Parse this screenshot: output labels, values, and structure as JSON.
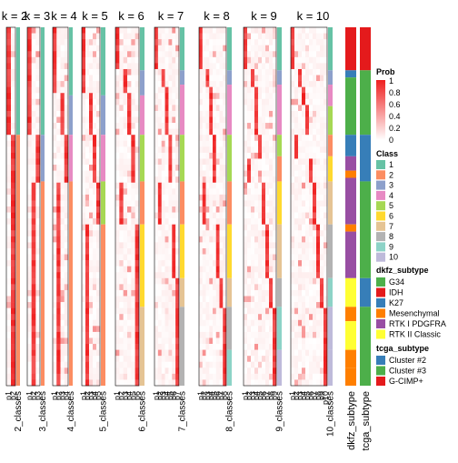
{
  "chart_data": {
    "type": "heatmap",
    "panel_titles": [
      "k = 2",
      "k = 3",
      "k = 4",
      "k = 5",
      "k = 6",
      "k = 7",
      "k = 8",
      "k = 9",
      "k = 10"
    ],
    "row_labels": {
      "k2": [
        "p1",
        "p2"
      ],
      "k3": [
        "p1",
        "p2",
        "p3"
      ],
      "k4": [
        "p1",
        "p2",
        "p3",
        "p4"
      ],
      "k5": [
        "p1",
        "p2",
        "p3",
        "p4",
        "p5"
      ],
      "k6": [
        "p1",
        "p2",
        "p3",
        "p4",
        "p5",
        "p6"
      ],
      "k7": [
        "p1",
        "p2",
        "p3",
        "p4",
        "p5",
        "p6",
        "p7"
      ],
      "k8": [
        "p1",
        "p2",
        "p3",
        "p4",
        "p5",
        "p6",
        "p7",
        "p8"
      ],
      "k9": [
        "p1",
        "p2",
        "p3",
        "p4",
        "p5",
        "p6",
        "p7",
        "p8",
        "p9"
      ],
      "k10": [
        "p1",
        "p2",
        "p3",
        "p4",
        "p5",
        "p6",
        "p7",
        "p8",
        "p9",
        "p10"
      ]
    },
    "class_bar_labels": [
      "2_classes",
      "3_classes",
      "4_classes",
      "5_classes",
      "6_classes",
      "7_classes",
      "8_classes",
      "9_classes",
      "10_classes"
    ],
    "annotation_columns": [
      "dkfz_subtype",
      "tcga_subtype"
    ],
    "legends": {
      "prob": {
        "title": "Prob",
        "ticks": [
          "1",
          "0.8",
          "0.6",
          "0.4",
          "0.2",
          "0"
        ],
        "range": [
          0,
          1
        ],
        "colors": [
          "#FFFFFF",
          "#EF1F1F"
        ]
      },
      "class": {
        "title": "Class",
        "labels": [
          "1",
          "2",
          "3",
          "4",
          "5",
          "6",
          "7",
          "8",
          "9",
          "10"
        ],
        "colors": [
          "#66C2A5",
          "#FC8D62",
          "#8DA0CB",
          "#E78AC3",
          "#A6D854",
          "#FFD92F",
          "#E5C494",
          "#B3B3B3",
          "#8DD3C7",
          "#BEBADA"
        ]
      },
      "dkfz_subtype": {
        "title": "dkfz_subtype",
        "labels": [
          "G34",
          "IDH",
          "K27",
          "Mesenchymal",
          "RTK I PDGFRA",
          "RTK II Classic"
        ],
        "colors": [
          "#4DAF4A",
          "#E41A1C",
          "#377EB8",
          "#FF7F00",
          "#984EA3",
          "#FFFF33"
        ]
      },
      "tcga_subtype": {
        "title": "tcga_subtype",
        "labels": [
          "Cluster #2",
          "Cluster #3",
          "G-CIMP+"
        ],
        "colors": [
          "#377EB8",
          "#4DAF4A",
          "#E41A1C"
        ]
      }
    }
  }
}
